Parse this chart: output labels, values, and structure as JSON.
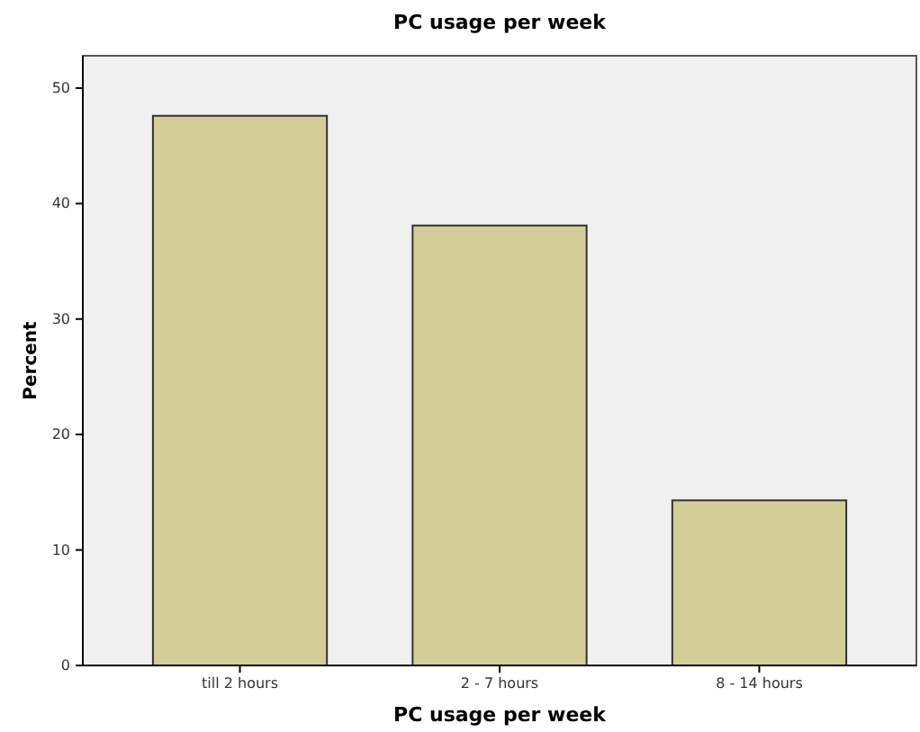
{
  "chart_data": {
    "type": "bar",
    "title": "PC usage per week",
    "xlabel": "PC usage per week",
    "ylabel": "Percent",
    "categories": [
      "till 2 hours",
      "2 - 7 hours",
      "8 - 14 hours"
    ],
    "values": [
      47.6,
      38.1,
      14.3
    ],
    "color": "#d3ce97",
    "ylim": [
      0,
      52.8
    ],
    "yticks": [
      0,
      10,
      20,
      30,
      40,
      50
    ],
    "grid": false
  }
}
